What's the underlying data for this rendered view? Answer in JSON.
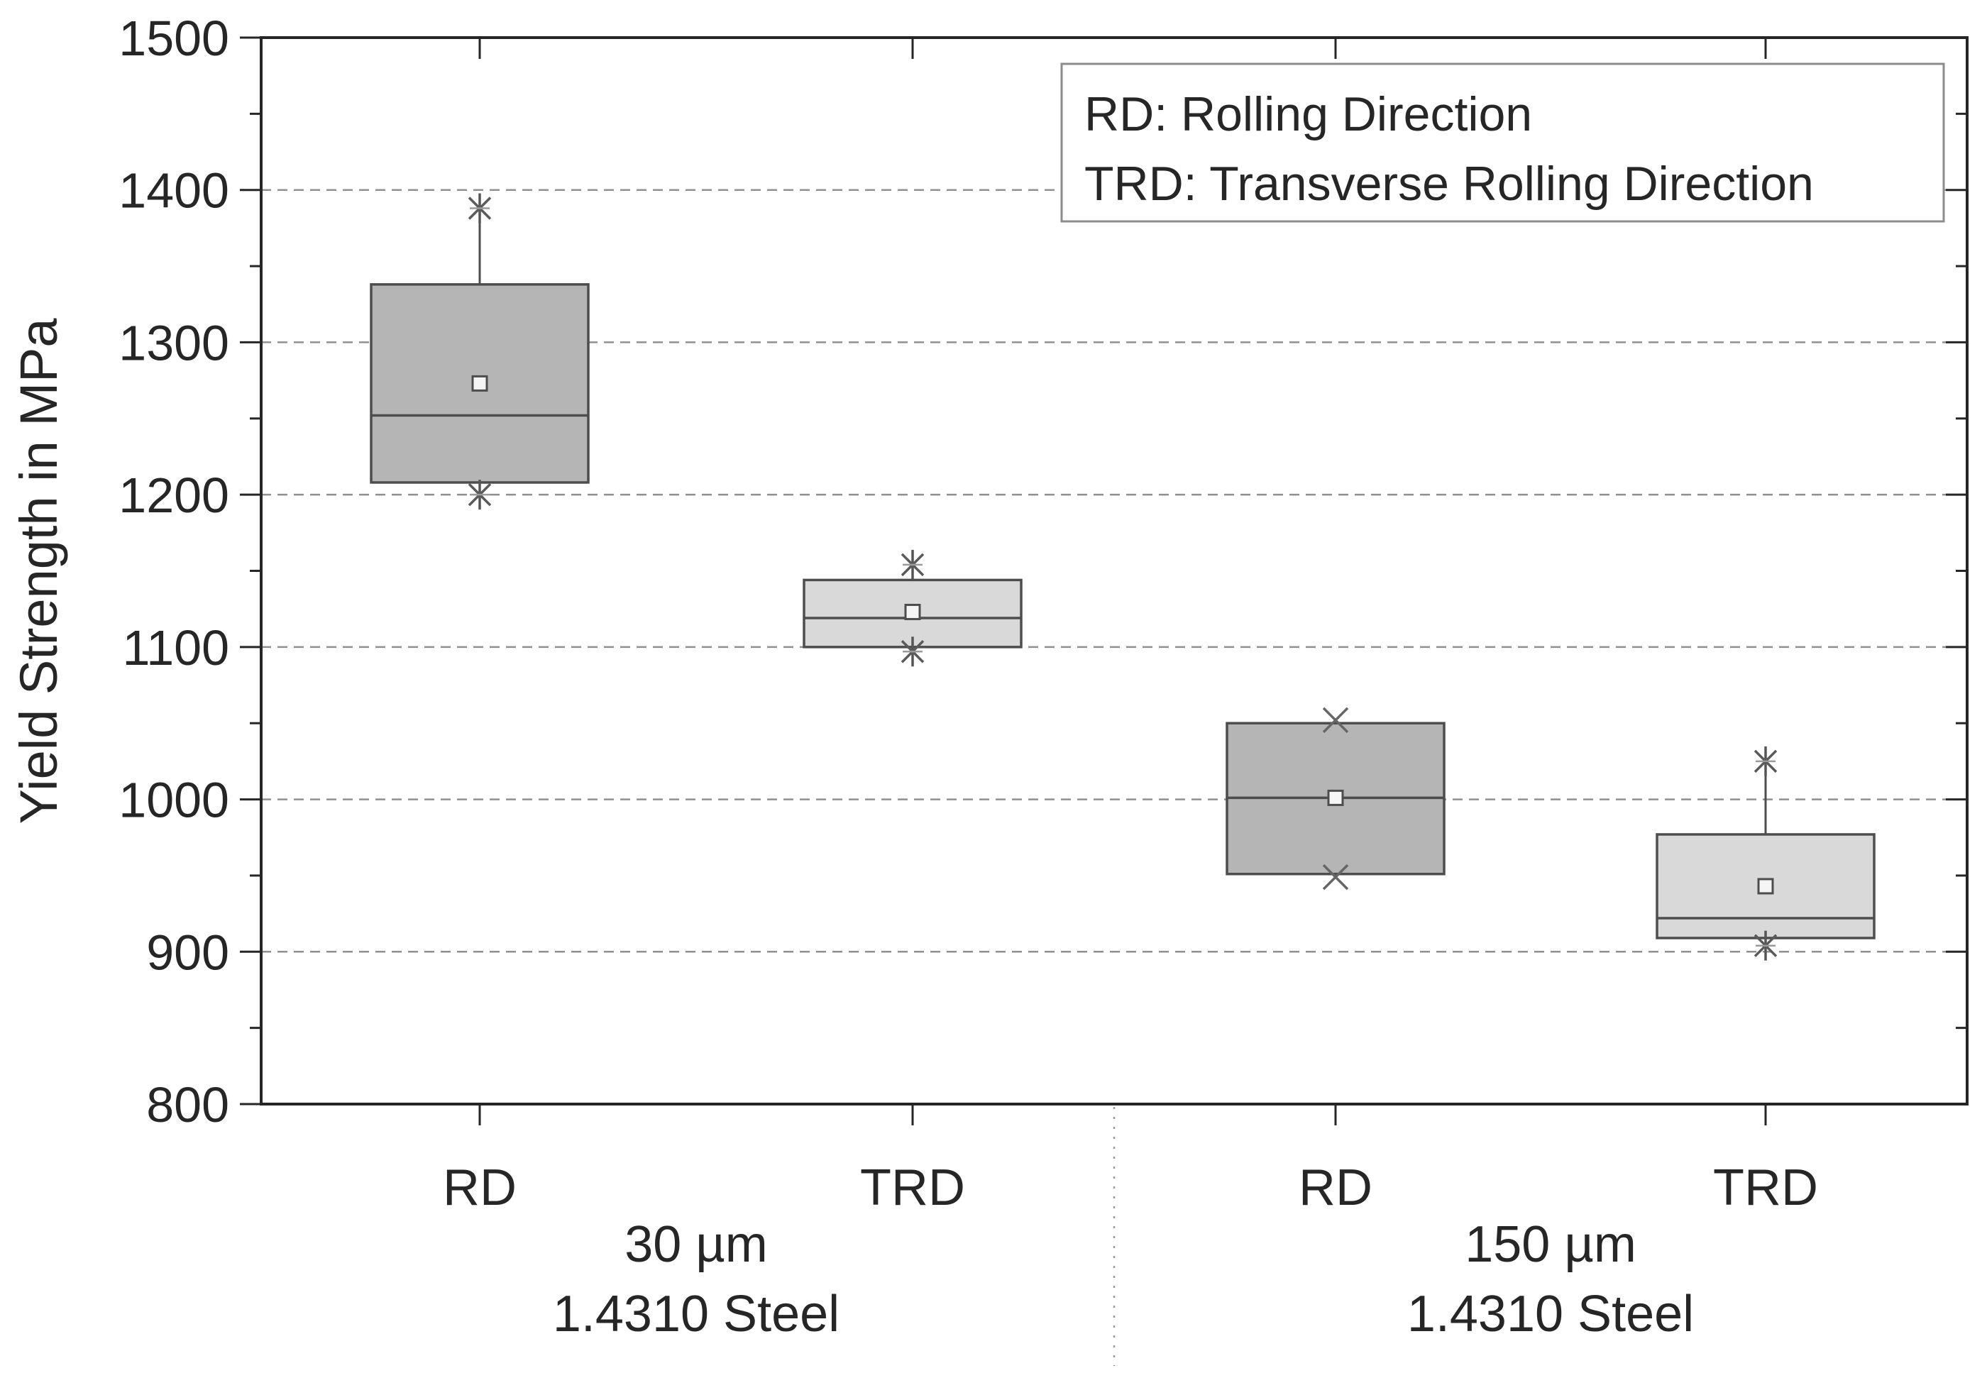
{
  "chart_data": {
    "type": "box",
    "title": "",
    "xlabel": "",
    "ylabel": "Yield Strength in MPa",
    "ylim": [
      800,
      1500
    ],
    "yticks": [
      800,
      900,
      1000,
      1100,
      1200,
      1300,
      1400,
      1500
    ],
    "minor_ytick_values": [
      850,
      950,
      1050,
      1150,
      1250,
      1350,
      1450
    ],
    "grid": {
      "style": "dashed-horizontal",
      "lines_at": [
        900,
        1000,
        1100,
        1200,
        1300,
        1400
      ]
    },
    "legend": {
      "position": "top-right",
      "lines": [
        "RD: Rolling Direction",
        "TRD: Transverse Rolling Direction"
      ]
    },
    "groups": [
      {
        "size_label": "30 µm",
        "material_label": "1.4310 Steel",
        "categories": [
          "RD",
          "TRD"
        ]
      },
      {
        "size_label": "150 µm",
        "material_label": "1.4310 Steel",
        "categories": [
          "RD",
          "TRD"
        ]
      }
    ],
    "series": [
      {
        "group": "30 µm 1.4310 Steel",
        "category": "RD",
        "min": 1200,
        "q1": 1208,
        "median": 1252,
        "mean": 1273,
        "q3": 1338,
        "max": 1388,
        "fill": "#b5b5b5",
        "extreme_marker": "asterisk"
      },
      {
        "group": "30 µm 1.4310 Steel",
        "category": "TRD",
        "min": 1097,
        "q1": 1100,
        "median": 1119,
        "mean": 1123,
        "q3": 1144,
        "max": 1154,
        "fill": "#d9d9d9",
        "extreme_marker": "asterisk"
      },
      {
        "group": "150 µm 1.4310 Steel",
        "category": "RD",
        "min": 949,
        "q1": 951,
        "median": 1001,
        "mean": 1001,
        "q3": 1050,
        "max": 1052,
        "fill": "#b5b5b5",
        "extreme_marker": "x"
      },
      {
        "group": "150 µm 1.4310 Steel",
        "category": "TRD",
        "min": 904,
        "q1": 909,
        "median": 922,
        "mean": 943,
        "q3": 977,
        "max": 1025,
        "fill": "#d9d9d9",
        "extreme_marker": "asterisk"
      }
    ],
    "mean_marker": "open-square",
    "median_marker": "horizontal-line",
    "colors": {
      "axis": "#262626",
      "box_edge": "#4d4d4d",
      "grid": "#909090",
      "text": "#262626",
      "rd_fill": "#b5b5b5",
      "trd_fill": "#d9d9d9",
      "marker_light": "#9a9a9a",
      "separator": "#9a9a9a",
      "legend_border": "#8c8c8c"
    }
  }
}
